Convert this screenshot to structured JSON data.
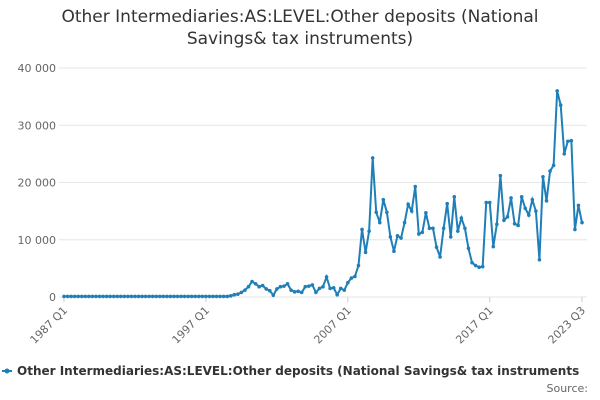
{
  "chart_data": {
    "type": "line",
    "title": "Other Intermediaries:AS:LEVEL:Other deposits (National Savings& tax instruments)",
    "source": "Source:",
    "categories": [
      "1987 Q1",
      null,
      null,
      null,
      null,
      null,
      null,
      null,
      null,
      null,
      null,
      null,
      null,
      null,
      null,
      null,
      null,
      null,
      null,
      null,
      null,
      null,
      null,
      null,
      null,
      null,
      null,
      null,
      null,
      null,
      null,
      null,
      null,
      null,
      null,
      null,
      null,
      null,
      null,
      null,
      "1997 Q1",
      null,
      null,
      null,
      null,
      null,
      null,
      null,
      null,
      null,
      null,
      null,
      null,
      null,
      null,
      null,
      null,
      null,
      null,
      null,
      null,
      null,
      null,
      null,
      null,
      null,
      null,
      null,
      null,
      null,
      null,
      null,
      null,
      null,
      null,
      null,
      null,
      null,
      null,
      null,
      "2007 Q1",
      null,
      null,
      null,
      null,
      null,
      null,
      null,
      null,
      null,
      null,
      null,
      null,
      null,
      null,
      null,
      null,
      null,
      null,
      null,
      null,
      null,
      null,
      null,
      null,
      null,
      null,
      null,
      null,
      null,
      null,
      null,
      null,
      null,
      null,
      null,
      null,
      null,
      null,
      null,
      "2017 Q1",
      null,
      null,
      null,
      null,
      null,
      null,
      null,
      null,
      null,
      null,
      null,
      null,
      null,
      null,
      null,
      null,
      null,
      null,
      null,
      null,
      null,
      null,
      null,
      null,
      null,
      "2023 Q3"
    ],
    "series": [
      {
        "name": "Other Intermediaries:AS:LEVEL:Other deposits (National Savings& tax instruments",
        "color": "#1f7fb8",
        "values": [
          100,
          100,
          100,
          100,
          100,
          100,
          100,
          100,
          100,
          100,
          100,
          100,
          100,
          100,
          100,
          100,
          100,
          100,
          100,
          100,
          100,
          100,
          100,
          100,
          100,
          100,
          100,
          100,
          100,
          100,
          100,
          100,
          100,
          100,
          100,
          100,
          100,
          100,
          100,
          100,
          100,
          100,
          100,
          100,
          100,
          100,
          100,
          200,
          400,
          500,
          800,
          1200,
          1800,
          2700,
          2300,
          1800,
          2000,
          1400,
          1100,
          300,
          1400,
          1800,
          1900,
          2300,
          1200,
          900,
          1000,
          800,
          1800,
          1900,
          2100,
          800,
          1500,
          1800,
          3500,
          1500,
          1600,
          400,
          1500,
          1200,
          2500,
          3300,
          3600,
          5500,
          11800,
          7800,
          11500,
          24300,
          14800,
          13000,
          17000,
          14800,
          10500,
          8000,
          10700,
          10300,
          13000,
          16200,
          15000,
          19300,
          11000,
          11300,
          14700,
          12000,
          12000,
          8700,
          7000,
          12000,
          16300,
          10500,
          17500,
          11500,
          13800,
          12000,
          8500,
          6000,
          5500,
          5200,
          5300,
          16500,
          16500,
          8800,
          12700,
          21200,
          13400,
          14000,
          17300,
          12800,
          12500,
          17500,
          15500,
          14300,
          17000,
          15000,
          6500,
          21000,
          16800,
          22000,
          23000,
          36000,
          33500,
          25000,
          27200,
          27300,
          11800,
          16000,
          13000
        ]
      }
    ],
    "ylim": [
      0,
      40000
    ],
    "yticks": [
      0,
      {
        "value": 10000,
        "label": "10 000"
      },
      {
        "value": 20000,
        "label": "20 000"
      },
      {
        "value": 30000,
        "label": "30 000"
      },
      {
        "value": 40000,
        "label": "40 000"
      }
    ],
    "grid": true
  }
}
